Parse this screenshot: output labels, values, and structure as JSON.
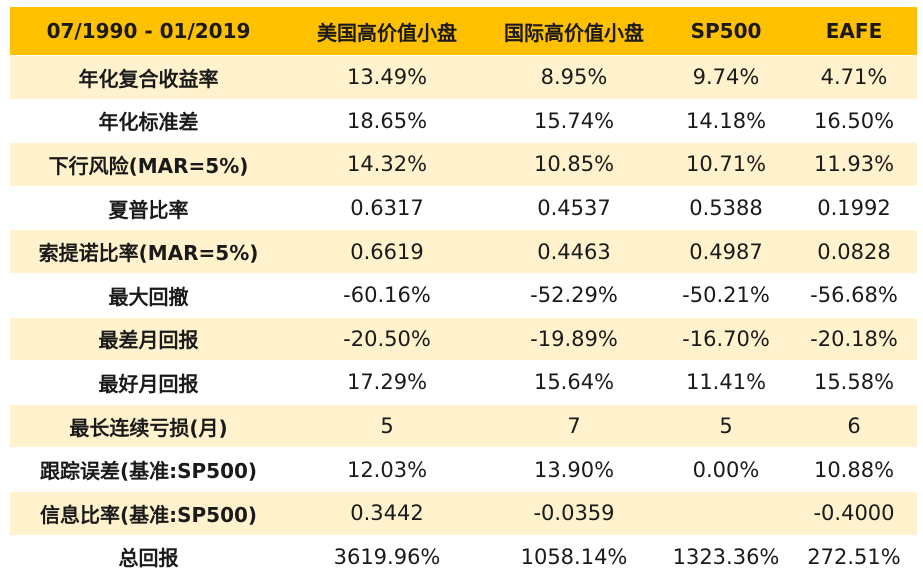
{
  "table": {
    "headers": [
      "07/1990 - 01/2019",
      "美国高价值小盘",
      "国际高价值小盘",
      "SP500",
      "EAFE"
    ],
    "rows": [
      {
        "label": "年化复合收益率",
        "values": [
          "13.49%",
          "8.95%",
          "9.74%",
          "4.71%"
        ]
      },
      {
        "label": "年化标准差",
        "values": [
          "18.65%",
          "15.74%",
          "14.18%",
          "16.50%"
        ]
      },
      {
        "label": "下行风险(MAR=5%)",
        "values": [
          "14.32%",
          "10.85%",
          "10.71%",
          "11.93%"
        ]
      },
      {
        "label": "夏普比率",
        "values": [
          "0.6317",
          "0.4537",
          "0.5388",
          "0.1992"
        ]
      },
      {
        "label": "索提诺比率(MAR=5%)",
        "values": [
          "0.6619",
          "0.4463",
          "0.4987",
          "0.0828"
        ]
      },
      {
        "label": "最大回撤",
        "values": [
          "-60.16%",
          "-52.29%",
          "-50.21%",
          "-56.68%"
        ]
      },
      {
        "label": "最差月回报",
        "values": [
          "-20.50%",
          "-19.89%",
          "-16.70%",
          "-20.18%"
        ]
      },
      {
        "label": "最好月回报",
        "values": [
          "17.29%",
          "15.64%",
          "11.41%",
          "15.58%"
        ]
      },
      {
        "label": "最长连续亏损(月)",
        "values": [
          "5",
          "7",
          "5",
          "6"
        ]
      },
      {
        "label": "跟踪误差(基准:SP500)",
        "values": [
          "12.03%",
          "13.90%",
          "0.00%",
          "10.88%"
        ]
      },
      {
        "label": "信息比率(基准:SP500)",
        "values": [
          "0.3442",
          "-0.0359",
          "",
          "-0.4000"
        ]
      },
      {
        "label": "总回报",
        "values": [
          "3619.96%",
          "1058.14%",
          "1323.36%",
          "272.51%"
        ]
      }
    ]
  },
  "colors": {
    "header_bg": "#ffc000",
    "band_bg": "#fff2cc",
    "plain_bg": "#ffffff"
  }
}
